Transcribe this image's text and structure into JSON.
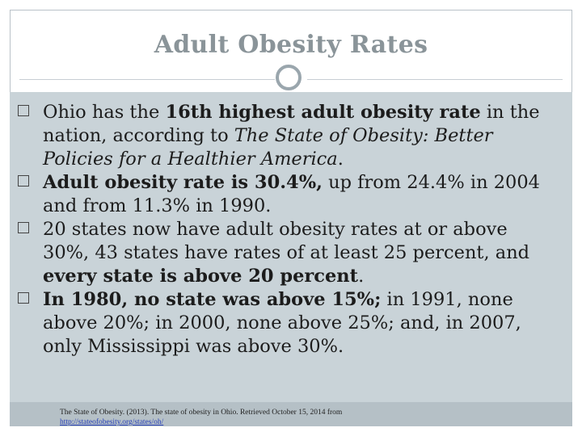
{
  "slide": {
    "title": "Adult Obesity Rates",
    "bullets": [
      {
        "parts": [
          {
            "t": "Ohio has the ",
            "s": "n"
          },
          {
            "t": "16th highest adult obesity rate",
            "s": "b"
          },
          {
            "t": " in the nation, according to ",
            "s": "n"
          },
          {
            "t": "The State of Obesity: Better Policies for a Healthier America",
            "s": "i"
          },
          {
            "t": ".",
            "s": "n"
          }
        ]
      },
      {
        "parts": [
          {
            "t": "Adult obesity rate is 30.4%,",
            "s": "b"
          },
          {
            "t": " up from 24.4% in 2004 and from 11.3% in 1990.",
            "s": "n"
          }
        ]
      },
      {
        "parts": [
          {
            "t": "20 states now have adult obesity rates at or above 30%, 43 states have rates of at least 25 percent, and ",
            "s": "n"
          },
          {
            "t": "every state is above 20 percent",
            "s": "b"
          },
          {
            "t": ".",
            "s": "n"
          }
        ]
      },
      {
        "parts": [
          {
            "t": "In 1980, no state was above 15%;",
            "s": "b"
          },
          {
            "t": " in 1991, none above 20%; in 2000, none above 25%; and, in 2007, only Mississippi was above 30%.",
            "s": "n"
          }
        ]
      }
    ],
    "citation": {
      "text": "The State of Obesity. (2013). The state of obesity in Ohio. Retrieved October 15, 2014 from",
      "link": "http://stateofobesity.org/states/oh/"
    }
  }
}
